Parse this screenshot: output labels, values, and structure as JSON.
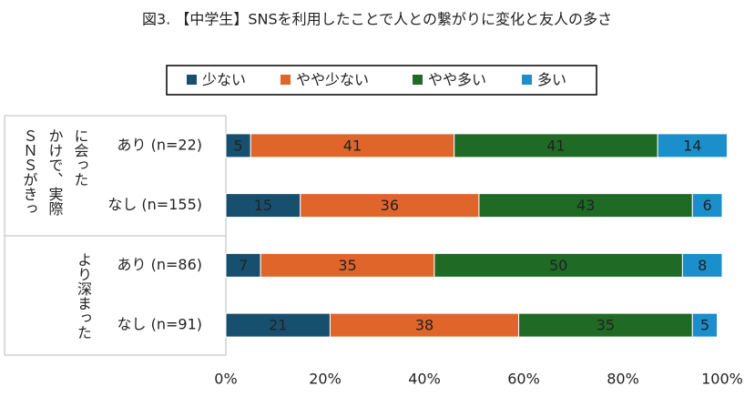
{
  "chart_data": {
    "type": "stacked_bar_horizontal",
    "title": "図3. 【中学生】SNSを利用したことで人との繋がりに変化と友人の多さ",
    "group_labels": [
      "ＳＮＳがきっかけで、実際に会った",
      "より深まった"
    ],
    "categories": [
      "あり (n=22)",
      "なし (n=155)",
      "あり (n=86)",
      "なし (n=91)"
    ],
    "series": [
      {
        "name": "少ない",
        "color": "#17506f",
        "values": [
          5,
          15,
          7,
          21
        ]
      },
      {
        "name": "やや少ない",
        "color": "#e0652a",
        "values": [
          41,
          36,
          35,
          38
        ]
      },
      {
        "name": "やや多い",
        "color": "#1f6a24",
        "values": [
          41,
          43,
          50,
          35
        ]
      },
      {
        "name": "多い",
        "color": "#1a8fcb",
        "values": [
          14,
          6,
          8,
          5
        ]
      }
    ],
    "xlim": [
      0,
      100
    ],
    "xticks": [
      {
        "value": 0,
        "label": "0%"
      },
      {
        "value": 20,
        "label": "20%"
      },
      {
        "value": 40,
        "label": "40%"
      },
      {
        "value": 60,
        "label": "60%"
      },
      {
        "value": 80,
        "label": "80%"
      },
      {
        "value": 100,
        "label": "100%"
      }
    ],
    "legend": "top"
  }
}
